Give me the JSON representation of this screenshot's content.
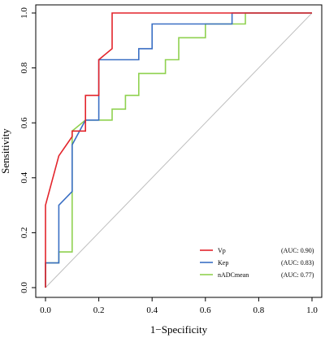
{
  "chart_data": {
    "type": "line",
    "xlabel": "1−Specificity",
    "ylabel": "Sensitivity",
    "xlim": [
      0,
      1
    ],
    "ylim": [
      0,
      1
    ],
    "x_ticks": [
      0.0,
      0.2,
      0.4,
      0.6,
      0.8,
      1.0
    ],
    "x_tick_labels": [
      "0.0",
      "0.2",
      "0.4",
      "0.6",
      "0.8",
      "1.0"
    ],
    "y_ticks": [
      0.0,
      0.2,
      0.4,
      0.6,
      0.8,
      1.0
    ],
    "y_tick_labels": [
      "0.0",
      "0.2",
      "0.4",
      "0.6",
      "0.8",
      "1.0"
    ],
    "grid": false,
    "reference_line": {
      "x": [
        0,
        1
      ],
      "y": [
        0,
        1
      ],
      "color": "#bdbdbd"
    },
    "legend_position": "bottom-right",
    "series": [
      {
        "name": "Vp",
        "auc_label": "(AUC: 0.90)",
        "color": "#e3242b",
        "x": [
          0,
          0,
          0.05,
          0.1,
          0.1,
          0.15,
          0.15,
          0.2,
          0.2,
          0.25,
          0.25,
          0.6,
          0.7,
          1.0
        ],
        "y": [
          0,
          0.3,
          0.48,
          0.55,
          0.57,
          0.57,
          0.7,
          0.7,
          0.83,
          0.87,
          1.0,
          1.0,
          1.0,
          1.0
        ]
      },
      {
        "name": "Kep",
        "auc_label": "(AUC: 0.83)",
        "color": "#3a6fc4",
        "x": [
          0,
          0,
          0.05,
          0.05,
          0.1,
          0.1,
          0.15,
          0.2,
          0.2,
          0.35,
          0.35,
          0.4,
          0.4,
          0.7,
          0.7,
          1.0
        ],
        "y": [
          0,
          0.09,
          0.09,
          0.3,
          0.35,
          0.52,
          0.61,
          0.61,
          0.83,
          0.83,
          0.87,
          0.87,
          0.96,
          0.96,
          1.0,
          1.0
        ]
      },
      {
        "name": "nADCmean",
        "auc_label": "(AUC: 0.77)",
        "color": "#8fd14f",
        "x": [
          0,
          0,
          0.05,
          0.05,
          0.1,
          0.1,
          0.15,
          0.25,
          0.25,
          0.3,
          0.3,
          0.35,
          0.35,
          0.45,
          0.45,
          0.5,
          0.5,
          0.6,
          0.6,
          0.75,
          0.75,
          1.0
        ],
        "y": [
          0,
          0.09,
          0.09,
          0.13,
          0.13,
          0.57,
          0.61,
          0.61,
          0.65,
          0.65,
          0.7,
          0.7,
          0.78,
          0.78,
          0.83,
          0.83,
          0.91,
          0.91,
          0.96,
          0.96,
          1.0,
          1.0
        ]
      }
    ]
  }
}
